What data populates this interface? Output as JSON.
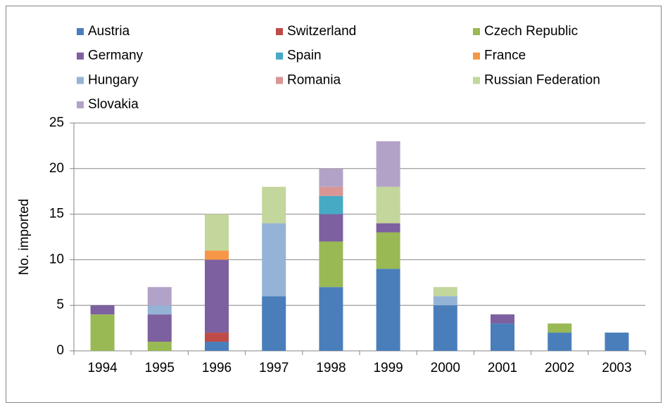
{
  "chart_data": {
    "type": "stacked-bar",
    "y_label": "No. imported",
    "categories": [
      "1994",
      "1995",
      "1996",
      "1997",
      "1998",
      "1999",
      "2000",
      "2001",
      "2002",
      "2003"
    ],
    "series": [
      {
        "name": "Austria",
        "color": "#4a7ebb",
        "values": [
          0,
          0,
          1,
          6,
          7,
          9,
          5,
          3,
          2,
          2
        ]
      },
      {
        "name": "Switzerland",
        "color": "#be4b48",
        "values": [
          0,
          0,
          1,
          0,
          0,
          0,
          0,
          0,
          0,
          0
        ]
      },
      {
        "name": "Czech Republic",
        "color": "#98b954",
        "values": [
          4,
          1,
          0,
          0,
          5,
          4,
          0,
          0,
          1,
          0
        ]
      },
      {
        "name": "Germany",
        "color": "#7d60a0",
        "values": [
          1,
          3,
          8,
          0,
          3,
          1,
          0,
          1,
          0,
          0
        ]
      },
      {
        "name": "Spain",
        "color": "#46aac5",
        "values": [
          0,
          0,
          0,
          0,
          2,
          0,
          0,
          0,
          0,
          0
        ]
      },
      {
        "name": "France",
        "color": "#f79646",
        "values": [
          0,
          0,
          1,
          0,
          0,
          0,
          0,
          0,
          0,
          0
        ]
      },
      {
        "name": "Hungary",
        "color": "#95b3d7",
        "values": [
          0,
          1,
          0,
          8,
          0,
          0,
          1,
          0,
          0,
          0
        ]
      },
      {
        "name": "Romania",
        "color": "#d99694",
        "values": [
          0,
          0,
          0,
          0,
          1,
          0,
          0,
          0,
          0,
          0
        ]
      },
      {
        "name": "Russian Federation",
        "color": "#c3d69b",
        "values": [
          0,
          0,
          4,
          4,
          0,
          4,
          1,
          0,
          0,
          0
        ]
      },
      {
        "name": "Slovakia",
        "color": "#b3a2c7",
        "values": [
          0,
          2,
          0,
          0,
          2,
          5,
          0,
          0,
          0,
          0
        ]
      }
    ],
    "ylim": [
      0,
      25
    ],
    "yticks": [
      0,
      5,
      10,
      15,
      20,
      25
    ],
    "grid": true
  }
}
